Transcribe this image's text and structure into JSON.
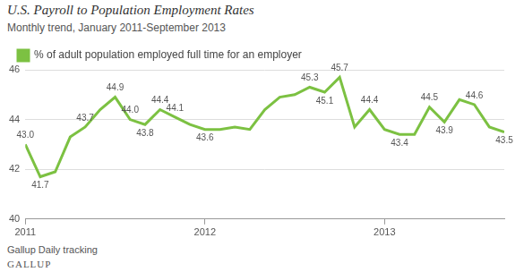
{
  "chart_data": {
    "type": "line",
    "title": "U.S. Payroll to Population Employment Rates",
    "subtitle": "Monthly trend, January 2011-September 2013",
    "source": "Gallup Daily tracking",
    "credit": "GALLUP",
    "categories": [
      "2011",
      null,
      null,
      null,
      null,
      null,
      null,
      null,
      null,
      null,
      null,
      null,
      "2012",
      null,
      null,
      null,
      null,
      null,
      null,
      null,
      null,
      null,
      null,
      null,
      "2013",
      null,
      null,
      null,
      null,
      null,
      null,
      null,
      null
    ],
    "series": [
      {
        "name": "% of adult population employed full time for an employer",
        "color": "#7cc142",
        "values": [
          43.0,
          41.7,
          41.9,
          43.3,
          43.7,
          44.4,
          44.9,
          44.0,
          43.8,
          44.4,
          44.1,
          43.8,
          43.6,
          43.6,
          43.7,
          43.6,
          44.4,
          44.9,
          45.0,
          45.3,
          45.1,
          45.7,
          43.7,
          44.4,
          43.6,
          43.4,
          43.4,
          44.5,
          43.9,
          44.8,
          44.6,
          43.7,
          43.5
        ],
        "value_labels": [
          "43.0",
          "41.7",
          null,
          null,
          "43.7",
          null,
          "44.9",
          "44.0",
          "43.8",
          "44.4",
          "44.1",
          null,
          "43.6",
          null,
          null,
          null,
          null,
          null,
          null,
          "45.3",
          "45.1",
          "45.7",
          null,
          "44.4",
          null,
          "43.4",
          null,
          "44.5",
          "43.9",
          null,
          "44.6",
          null,
          "43.5"
        ]
      }
    ],
    "ylim": [
      40,
      46
    ],
    "yticks": [
      40,
      42,
      44,
      46
    ],
    "grid": true,
    "legend": "top-left",
    "data_labels": true
  }
}
